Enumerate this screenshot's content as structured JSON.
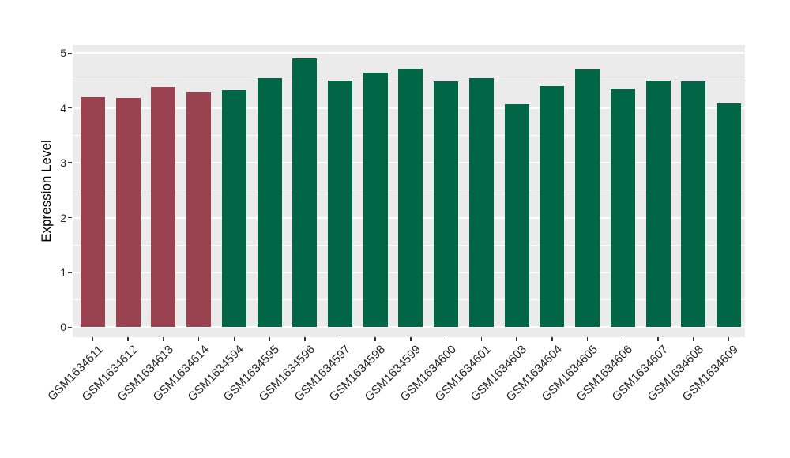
{
  "chart_data": {
    "type": "bar",
    "title": "",
    "xlabel": "",
    "ylabel": "Expression Level",
    "ylim": [
      0,
      5
    ],
    "yticks": [
      0,
      1,
      2,
      3,
      4,
      5
    ],
    "minor_gridlines": [
      0.5,
      1.5,
      2.5,
      3.5,
      4.5
    ],
    "grid": "on",
    "legend_position": "none",
    "panel_background": "#EBEBEB",
    "grid_color": "#FFFFFF",
    "categories": [
      "GSM1634611",
      "GSM1634612",
      "GSM1634613",
      "GSM1634614",
      "GSM1634594",
      "GSM1634595",
      "GSM1634596",
      "GSM1634597",
      "GSM1634598",
      "GSM1634599",
      "GSM1634600",
      "GSM1634601",
      "GSM1634603",
      "GSM1634604",
      "GSM1634605",
      "GSM1634606",
      "GSM1634607",
      "GSM1634608",
      "GSM1634609"
    ],
    "values": [
      4.2,
      4.18,
      4.38,
      4.29,
      4.33,
      4.54,
      4.9,
      4.5,
      4.64,
      4.71,
      4.49,
      4.54,
      4.07,
      4.4,
      4.7,
      4.34,
      4.5,
      4.49,
      4.08
    ],
    "bar_groups": [
      "maroon",
      "maroon",
      "maroon",
      "maroon",
      "green",
      "green",
      "green",
      "green",
      "green",
      "green",
      "green",
      "green",
      "green",
      "green",
      "green",
      "green",
      "green",
      "green",
      "green"
    ],
    "group_colors": {
      "maroon": "#9B4251",
      "green": "#006646"
    }
  }
}
